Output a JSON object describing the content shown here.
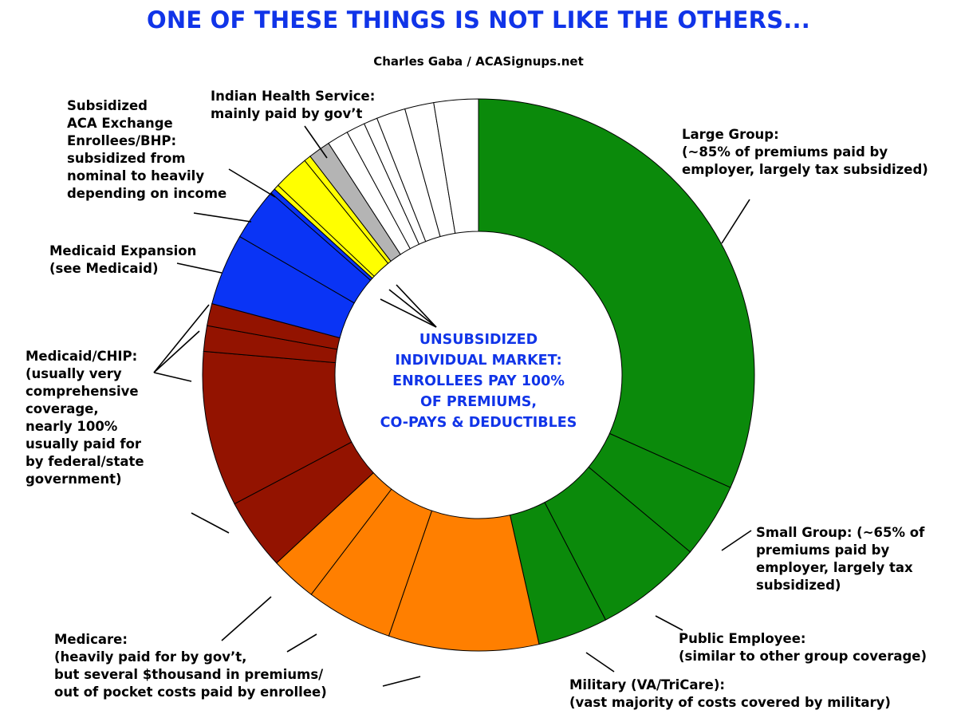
{
  "title": "ONE OF THESE THINGS IS NOT LIKE THE OTHERS...",
  "subtitle": "Charles Gaba / ACASignups.net",
  "center_label": "UNSUBSIDIZED\nINDIVIDUAL MARKET:\nENROLLEES PAY 100%\nOF PREMIUMS,\nCO-PAYS & DEDUCTIBLES",
  "labels": {
    "large_group": "Large Group:\n(~85% of premiums paid by\nemployer, largely tax subsidized)",
    "small_group": "Small Group: (~65% of\npremiums paid by\nemployer, largely tax\nsubsidized)",
    "public_employee": "Public Employee:\n(similar to other group coverage)",
    "military": "Military (VA/TriCare):\n(vast majority of costs covered by military)",
    "medicare": "Medicare:\n(heavily paid for by gov’t,\nbut several $thousand in premiums/\nout of pocket costs paid by enrollee)",
    "medicaid": "Medicaid/CHIP:\n(usually very\ncomprehensive\ncoverage,\nnearly 100%\nusually paid for\nby federal/state\ngovernment)",
    "medicaid_expansion": "Medicaid Expansion\n(see Medicaid)",
    "subsidized": "Subsidized\nACA Exchange\nEnrollees/BHP:\nsubsidized from\nnominal to heavily\ndepending on income",
    "ihs": "Indian Health Service:\nmainly paid by gov’t"
  },
  "chart_data": {
    "type": "pie",
    "donut": true,
    "unit": "percent (estimated share)",
    "start": "12 o'clock, clockwise",
    "slices": [
      {
        "group": "Large Group",
        "value": 31.7,
        "color": "#0b8a0b"
      },
      {
        "group": "Small Group",
        "value": 4.4,
        "color": "#0b8a0b"
      },
      {
        "group": "Public Employee",
        "value": 6.3,
        "color": "#0b8a0b"
      },
      {
        "group": "Military",
        "value": 4.1,
        "color": "#0b8a0b"
      },
      {
        "group": "Medicare",
        "value": 8.8,
        "color": "#ff7f00"
      },
      {
        "group": "Medicare",
        "value": 5.1,
        "color": "#ff7f00"
      },
      {
        "group": "Medicare",
        "value": 2.7,
        "color": "#ff7f00"
      },
      {
        "group": "Medicaid/CHIP",
        "value": 4.2,
        "color": "#931300"
      },
      {
        "group": "Medicaid/CHIP",
        "value": 9.1,
        "color": "#931300"
      },
      {
        "group": "Medicaid/CHIP",
        "value": 1.5,
        "color": "#931300"
      },
      {
        "group": "Medicaid/CHIP",
        "value": 1.3,
        "color": "#931300"
      },
      {
        "group": "Medicaid Expansion",
        "value": 4.2,
        "color": "#0a34f5"
      },
      {
        "group": "Medicaid Expansion",
        "value": 3.1,
        "color": "#0a34f5"
      },
      {
        "group": "Medicaid Expansion",
        "value": 0.3,
        "color": "#0a34f5"
      },
      {
        "group": "Subsidized ACA Exchange/BHP",
        "value": 0.3,
        "color": "#ffff00"
      },
      {
        "group": "Subsidized ACA Exchange/BHP",
        "value": 2.1,
        "color": "#ffff00"
      },
      {
        "group": "Subsidized ACA Exchange/BHP",
        "value": 0.4,
        "color": "#ffff00"
      },
      {
        "group": "Indian Health Service",
        "value": 1.3,
        "color": "#b4b4b4"
      },
      {
        "group": "Unsubsidized Individual Market",
        "value": 1.25,
        "color": "#ffffff"
      },
      {
        "group": "Unsubsidized Individual Market",
        "value": 1.1,
        "color": "#ffffff"
      },
      {
        "group": "Unsubsidized Individual Market",
        "value": 0.8,
        "color": "#ffffff"
      },
      {
        "group": "Unsubsidized Individual Market",
        "value": 1.7,
        "color": "#ffffff"
      },
      {
        "group": "Unsubsidized Individual Market",
        "value": 1.7,
        "color": "#ffffff"
      },
      {
        "group": "Unsubsidized Individual Market",
        "value": 2.6,
        "color": "#ffffff"
      }
    ]
  }
}
